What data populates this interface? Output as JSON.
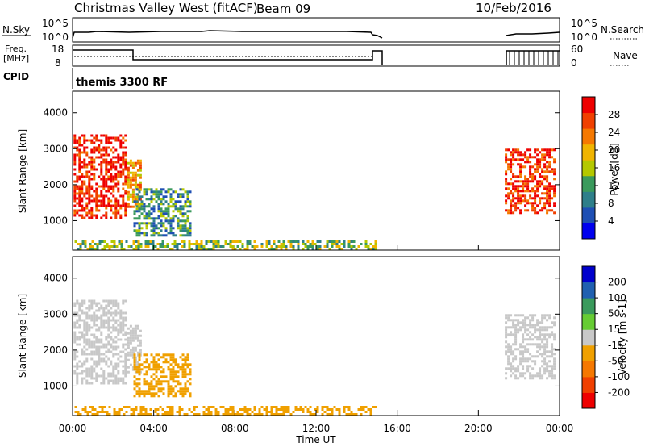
{
  "header": {
    "station_title": "Christmas Valley West (fitACF)",
    "beam_label": "Beam 09",
    "date": "10/Feb/2016"
  },
  "noise_panel": {
    "left_label": "N.Sky",
    "right_label": "N.Search",
    "left_ticks": [
      "10^5",
      "10^0"
    ],
    "right_ticks": [
      "10^5",
      "10^0"
    ]
  },
  "freq_panel": {
    "left_label_line1": "Freq.",
    "left_label_line2": "[MHz]",
    "right_label": "Nave",
    "left_ticks": [
      "18",
      "8"
    ],
    "right_ticks": [
      "60",
      "0"
    ]
  },
  "cpid": {
    "label": "CPID",
    "program": "themis 3300 RF"
  },
  "colors": {
    "power_scale": [
      "#0000ee",
      "#1e4fb4",
      "#2e7f8a",
      "#3a9a5c",
      "#b4c800",
      "#f0b400",
      "#f57800",
      "#f04000",
      "#ee0000"
    ],
    "velocity_scale": [
      "#ee0000",
      "#f04000",
      "#f57800",
      "#f0a000",
      "#c8c8c8",
      "#66cc33",
      "#3a9a5c",
      "#2060b0",
      "#0000cc"
    ],
    "ground_scatter": "#c0c0b8"
  },
  "chart_data": [
    {
      "type": "heatmap",
      "panel": "power",
      "xlabel": "",
      "ylabel": "Slant Range [km]",
      "xlim": [
        0,
        24
      ],
      "ylim": [
        180,
        4600
      ],
      "yticks": [
        "1000",
        "2000",
        "3000",
        "4000"
      ],
      "colorbar": {
        "label": "Power [dB]",
        "ticks": [
          "28",
          "24",
          "20",
          "16",
          "12",
          "8",
          "4"
        ],
        "range": [
          0,
          30
        ]
      },
      "regions": [
        {
          "t": [
            0.05,
            2.6
          ],
          "r": [
            1100,
            3400
          ],
          "value": 28
        },
        {
          "t": [
            2.7,
            3.3
          ],
          "r": [
            1400,
            2700
          ],
          "value": 20
        },
        {
          "t": [
            3.0,
            5.8
          ],
          "r": [
            600,
            1900
          ],
          "value": 10
        },
        {
          "t": [
            0.1,
            15.0
          ],
          "r": [
            200,
            450
          ],
          "value": 14
        },
        {
          "t": [
            21.3,
            23.8
          ],
          "r": [
            1200,
            3000
          ],
          "value": 26
        }
      ]
    },
    {
      "type": "heatmap",
      "panel": "velocity",
      "xlabel": "Time UT",
      "ylabel": "Slant Range [km]",
      "xlim": [
        0,
        24
      ],
      "ylim": [
        180,
        4600
      ],
      "xticks": [
        "00:00",
        "04:00",
        "08:00",
        "12:00",
        "16:00",
        "20:00",
        "00:00"
      ],
      "yticks": [
        "1000",
        "2000",
        "3000",
        "4000"
      ],
      "colorbar": {
        "label": "Velocity [m s-1]",
        "ticks": [
          "200",
          "100",
          "50",
          "15",
          "-15",
          "-50",
          "-100",
          "-200"
        ],
        "range": [
          -250,
          250
        ]
      },
      "regions": [
        {
          "t": [
            0.05,
            2.6
          ],
          "r": [
            1100,
            3400
          ],
          "value": 0
        },
        {
          "t": [
            2.7,
            3.3
          ],
          "r": [
            1400,
            2700
          ],
          "value": 0
        },
        {
          "t": [
            3.0,
            5.8
          ],
          "r": [
            700,
            1900
          ],
          "value": -50
        },
        {
          "t": [
            0.1,
            15.0
          ],
          "r": [
            200,
            450
          ],
          "value": -30
        },
        {
          "t": [
            21.3,
            23.8
          ],
          "r": [
            1200,
            3000
          ],
          "value": 0
        }
      ]
    }
  ]
}
